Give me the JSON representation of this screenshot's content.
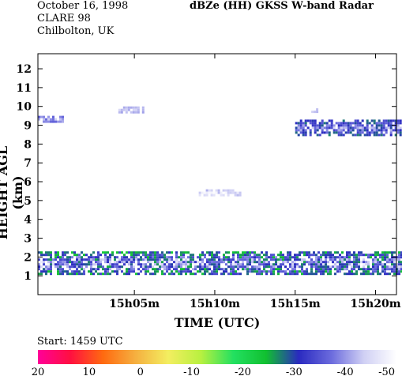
{
  "header": {
    "date": "October 16, 1998",
    "campaign": "CLARE 98",
    "location": "Chilbolton, UK",
    "title": "dBZe (HH)  GKSS  W-band Radar"
  },
  "start_text": "Start: 1459 UTC",
  "chart_data": {
    "type": "heatmap",
    "title": "dBZe (HH)  GKSS  W-band Radar",
    "xlabel": "TIME (UTC)",
    "ylabel": "HEIGHT AGL (km)",
    "xlim": [
      "14h59m",
      "15h21m"
    ],
    "x_ticks": [
      "15h05m",
      "15h10m",
      "15h15m",
      "15h20m"
    ],
    "ylim": [
      0,
      12.8
    ],
    "y_ticks": [
      1,
      2,
      3,
      4,
      5,
      6,
      7,
      8,
      9,
      10,
      11,
      12
    ],
    "grid": false,
    "colorbar": {
      "label": "dBZe",
      "ticks": [
        "20",
        "10",
        "0",
        "-10",
        "-20",
        "-30",
        "-40",
        "-50"
      ],
      "range": [
        20,
        -50
      ],
      "stops": [
        "#ff0099",
        "#ff1040",
        "#ff6a10",
        "#f5b040",
        "#f3ee60",
        "#b8f040",
        "#22e060",
        "#11c030",
        "#2a2ac0",
        "#6b6bdd",
        "#d0d0f4",
        "#ffffff"
      ]
    },
    "features": [
      {
        "name": "low cloud layer",
        "time_range": [
          "14h59m",
          "15h21m"
        ],
        "height_range": [
          1.0,
          2.3
        ],
        "dbz_range": [
          -50,
          -20
        ]
      },
      {
        "name": "upper cirrus band",
        "time_range": [
          "15h15m",
          "15h21m"
        ],
        "height_range": [
          8.4,
          9.3
        ],
        "dbz_range": [
          -45,
          -25
        ]
      },
      {
        "name": "mid-level echo",
        "time_range": [
          "15h09m",
          "15h11m"
        ],
        "height_range": [
          5.2,
          5.6
        ],
        "dbz_range": [
          -50,
          -40
        ]
      },
      {
        "name": "early high echo",
        "time_range": [
          "14h59m",
          "15h00m"
        ],
        "height_range": [
          9.1,
          9.5
        ],
        "dbz_range": [
          -45,
          -35
        ]
      },
      {
        "name": "isolated echo",
        "time_range": [
          "15h04m",
          "15h05m"
        ],
        "height_range": [
          9.6,
          10.0
        ],
        "dbz_range": [
          -45,
          -40
        ]
      },
      {
        "name": "isolated echo",
        "time_range": [
          "15h16m",
          "15h16m"
        ],
        "height_range": [
          9.6,
          9.9
        ],
        "dbz_range": [
          -45,
          -40
        ]
      }
    ]
  }
}
